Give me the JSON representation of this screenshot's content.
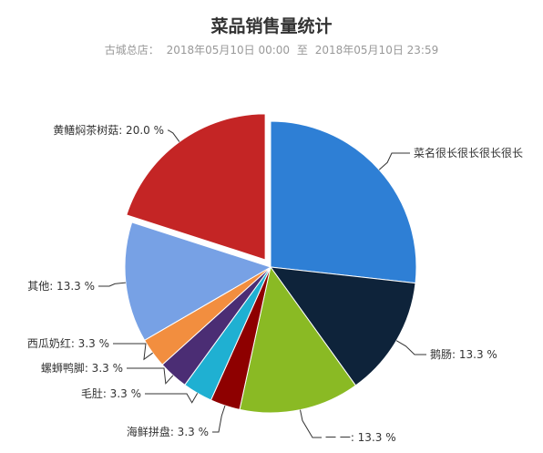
{
  "header": {
    "title": "菜品销售量统计",
    "store_label": "古城总店：",
    "start_time": "2018年05月10日 00:00",
    "range_sep": "至",
    "end_time": "2018年05月10日 23:59"
  },
  "chart_data": {
    "type": "pie",
    "title": "菜品销售量统计",
    "subtitle": "古城总店： 2018年05月10日 00:00 至 2018年05月10日 23:59",
    "legend": "none",
    "slices": [
      {
        "name": "菜名很长很长很长很长很长",
        "label": "菜名很长很长很长很长",
        "value": 26.7,
        "color": "#2e7fd5",
        "exploded": false
      },
      {
        "name": "鹅肠",
        "label": "鹅肠: 13.3 %",
        "value": 13.3,
        "color": "#0e233a",
        "exploded": false
      },
      {
        "name": "一 一",
        "label": "一 一: 13.3 %",
        "value": 13.3,
        "color": "#8aba24",
        "exploded": false
      },
      {
        "name": "海鲜拼盘",
        "label": "海鲜拼盘: 3.3 %",
        "value": 3.3,
        "color": "#8e0000",
        "exploded": false
      },
      {
        "name": "毛肚",
        "label": "毛肚: 3.3 %",
        "value": 3.3,
        "color": "#1fb0d2",
        "exploded": false
      },
      {
        "name": "螺蛳鸭脚",
        "label": "螺蛳鸭脚: 3.3 %",
        "value": 3.3,
        "color": "#4b2d74",
        "exploded": false
      },
      {
        "name": "西瓜奶红",
        "label": "西瓜奶红: 3.3 %",
        "value": 3.3,
        "color": "#f28e3f",
        "exploded": false
      },
      {
        "name": "其他",
        "label": "其他: 13.3 %",
        "value": 13.3,
        "color": "#77a1e5",
        "exploded": false
      },
      {
        "name": "黄鳝焖茶树菇",
        "label": "黄鳝焖茶树菇: 20.0 %",
        "value": 20.0,
        "color": "#c42525",
        "exploded": true
      }
    ]
  }
}
